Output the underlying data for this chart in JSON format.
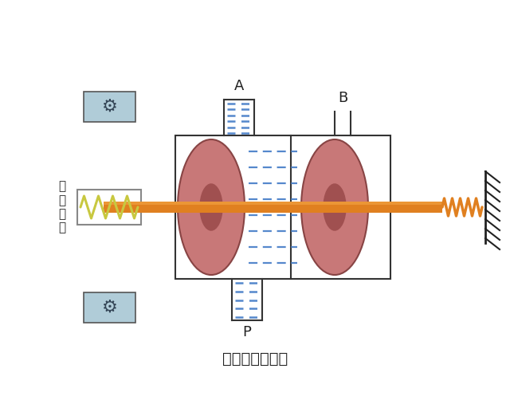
{
  "title": "二位三通电磁阀",
  "label_xian_quan": "线\n圈\n断\n电",
  "label_A": "A",
  "label_B": "B",
  "label_P": "P",
  "bg_color": "#ffffff",
  "body_outline_color": "#333333",
  "spool_color_outer": "#c87070",
  "spool_color_inner": "#a04040",
  "rod_color": "#E08020",
  "rod_highlight": "#F0A040",
  "spring_left_color": "#c8c840",
  "spring_right_color": "#E08020",
  "port_line_color": "#6699cc",
  "wall_color": "#333333",
  "coil_box_color": "#c8c840",
  "coil_bg": "#c8d8e0",
  "title_fontsize": 14,
  "label_fontsize": 12,
  "port_label_fontsize": 13
}
